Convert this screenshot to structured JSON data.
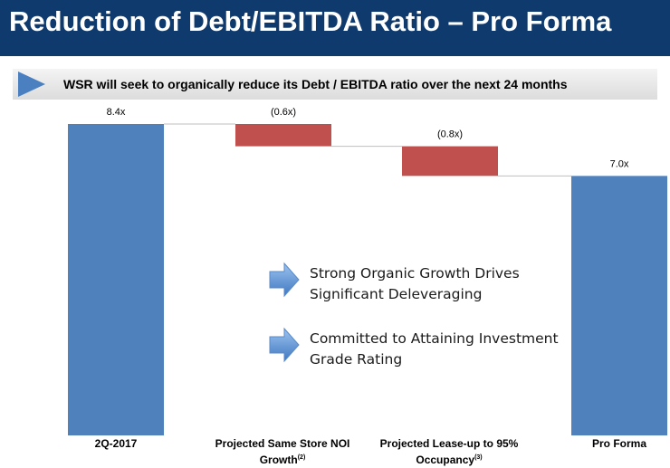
{
  "title": "Reduction of Debt/EBITDA Ratio – Pro Forma",
  "banner": {
    "text": "WSR will seek to organically reduce its Debt / EBITDA ratio over the next 24 months"
  },
  "callouts": [
    {
      "text": "Strong Organic Growth Drives Significant Deleveraging",
      "icon": "blue-right-arrow-icon"
    },
    {
      "text": "Committed to Attaining Investment Grade Rating",
      "icon": "blue-right-arrow-icon"
    }
  ],
  "colors": {
    "title_bg": "#0e3a6e",
    "total_bar": "#4f81bd",
    "decrease_bar": "#c0504d",
    "banner_arrow": "#4a7fc0"
  },
  "chart_data": {
    "type": "bar",
    "subtype": "waterfall",
    "categories": [
      "2Q-2017",
      "Projected Same Store NOI Growth",
      "Projected Lease-up to 95% Occupancy",
      "Pro Forma"
    ],
    "category_superscripts": [
      "",
      "(2)",
      "(3)",
      ""
    ],
    "values": [
      8.4,
      -0.6,
      -0.8,
      7.0
    ],
    "kinds": [
      "total",
      "decrease",
      "decrease",
      "total"
    ],
    "data_labels": [
      "8.4x",
      "(0.6x)",
      "(0.8x)",
      "7.0x"
    ],
    "ylim": [
      0,
      8.4
    ],
    "grid": false,
    "legend": "none",
    "xlabel": "",
    "ylabel": ""
  }
}
